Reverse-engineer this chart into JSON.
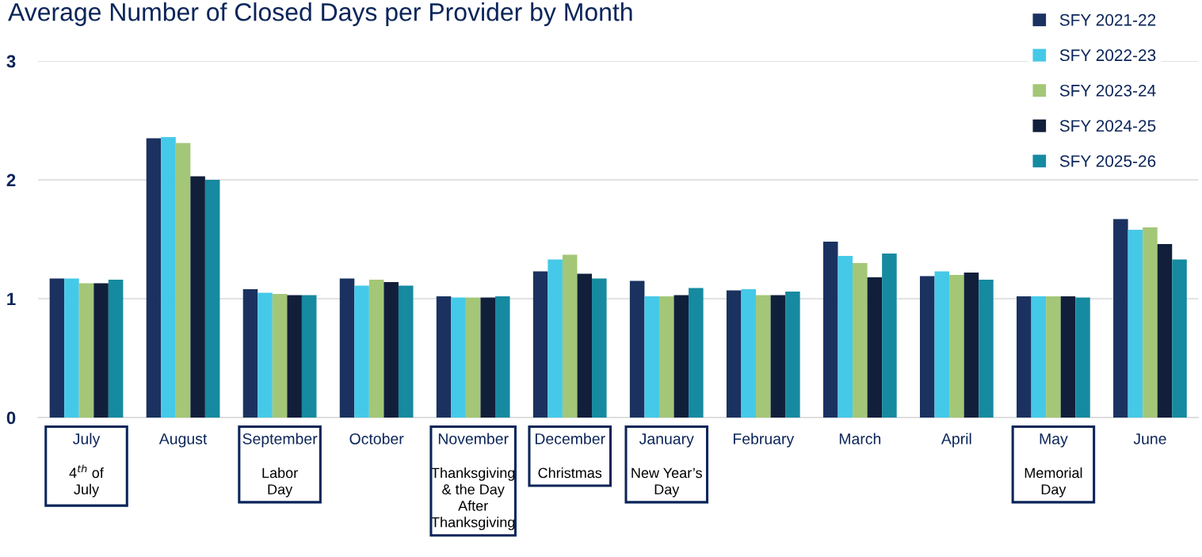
{
  "chart_data": {
    "type": "bar",
    "title": "Average Number of Closed Days per Provider by Month",
    "categories": [
      "July",
      "August",
      "September",
      "October",
      "November",
      "December",
      "January",
      "February",
      "March",
      "April",
      "May",
      "June"
    ],
    "series": [
      {
        "name": "SFY 2021-22",
        "color": "#1b3260",
        "values": [
          1.17,
          2.35,
          1.08,
          1.17,
          1.02,
          1.23,
          1.15,
          1.07,
          1.48,
          1.19,
          1.02,
          1.67
        ]
      },
      {
        "name": "SFY 2022-23",
        "color": "#45c9e8",
        "values": [
          1.17,
          2.36,
          1.05,
          1.11,
          1.01,
          1.33,
          1.02,
          1.08,
          1.36,
          1.23,
          1.02,
          1.58
        ]
      },
      {
        "name": "SFY 2023-24",
        "color": "#a3c777",
        "values": [
          1.13,
          2.31,
          1.04,
          1.16,
          1.01,
          1.37,
          1.02,
          1.03,
          1.3,
          1.2,
          1.02,
          1.6
        ]
      },
      {
        "name": "SFY 2024-25",
        "color": "#121f3a",
        "values": [
          1.13,
          2.03,
          1.03,
          1.14,
          1.01,
          1.21,
          1.03,
          1.03,
          1.18,
          1.22,
          1.02,
          1.46
        ]
      },
      {
        "name": "SFY 2025-26",
        "color": "#168aa0",
        "values": [
          1.16,
          2.0,
          1.03,
          1.11,
          1.02,
          1.17,
          1.09,
          1.06,
          1.38,
          1.16,
          1.01,
          1.33
        ]
      }
    ],
    "ylim": [
      0,
      3
    ],
    "yticks": [
      0,
      1,
      2,
      3
    ],
    "grid": "y",
    "legend": "top right",
    "annotations": [
      "4$^{th}$ of\nJuly",
      "Labor\nDay",
      "Thanksgiving\n& the Day\nAfter\nThanksgiving",
      "Christmas",
      "New Year’s\nDay",
      "Memorial\nDay"
    ]
  }
}
